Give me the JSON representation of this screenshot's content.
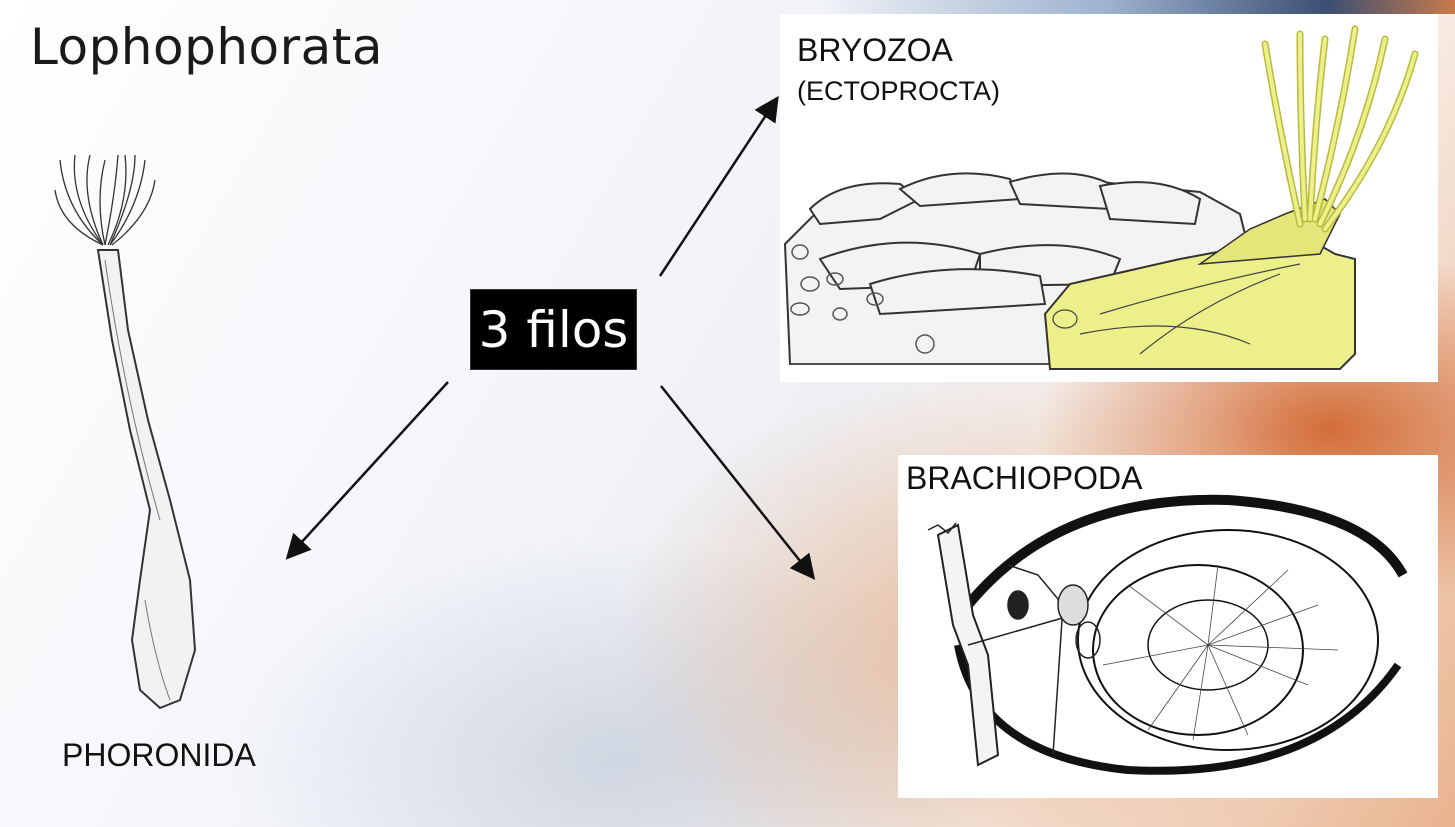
{
  "title": "Lophophorata",
  "center_label": "3 filos",
  "phyla": {
    "bryozoa": {
      "name": "BRYOZOA",
      "alt_name": "(ECTOPROCTA)"
    },
    "brachiopoda": {
      "name": "BRACHIOPODA"
    },
    "phoronida": {
      "name": "PHORONIDA"
    }
  },
  "colors": {
    "bryozoa_highlight": "#edef8a",
    "center_box": "#000000",
    "accent_orange": "#cd5a1e"
  }
}
